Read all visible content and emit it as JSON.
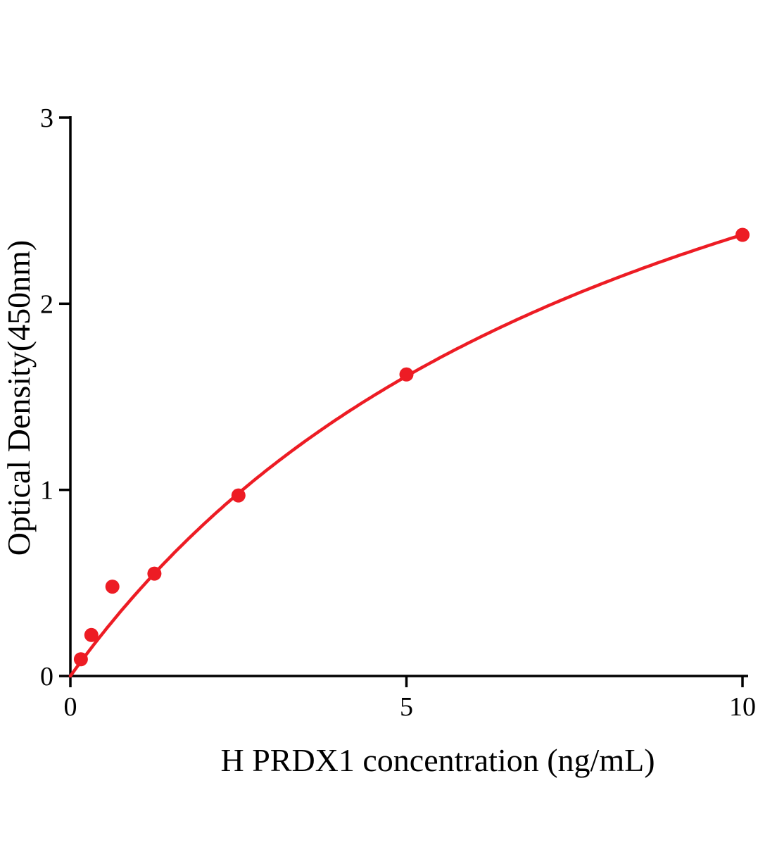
{
  "chart_data": {
    "type": "scatter",
    "title": "",
    "xlabel": "H PRDX1 concentration (ng/mL)",
    "ylabel": "Optical Density(450nm)",
    "x": [
      0.156,
      0.3125,
      0.625,
      1.25,
      2.5,
      5,
      10
    ],
    "y": [
      0.09,
      0.22,
      0.48,
      0.55,
      0.97,
      1.62,
      2.37
    ],
    "xlim": [
      0,
      10
    ],
    "ylim": [
      0,
      3
    ],
    "x_ticks": [
      0,
      5,
      10
    ],
    "y_ticks": [
      0,
      1,
      2,
      3
    ],
    "grid": false,
    "legend": "none",
    "marker_color": "#ed1c24",
    "line_color": "#ed1c24",
    "axis_color": "#000000",
    "fit": {
      "type": "michaelis_menten",
      "vmax": 4.49,
      "km": 8.94
    }
  }
}
